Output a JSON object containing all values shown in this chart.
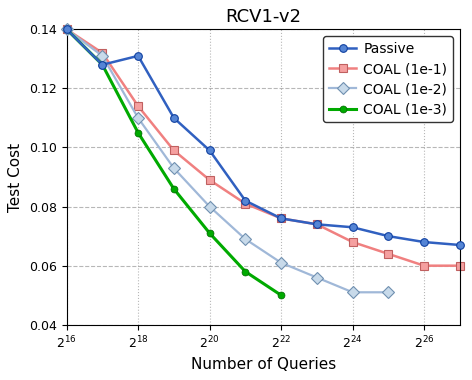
{
  "title": "RCV1-v2",
  "xlabel": "Number of Queries",
  "ylabel": "Test Cost",
  "ylim": [
    0.04,
    0.14
  ],
  "xtick_exps": [
    16,
    18,
    20,
    22,
    24,
    26
  ],
  "passive": {
    "x_exp": [
      16,
      17,
      18,
      19,
      20,
      21,
      22,
      23,
      24,
      25,
      26,
      27
    ],
    "y": [
      0.14,
      0.128,
      0.131,
      0.11,
      0.099,
      0.082,
      0.076,
      0.074,
      0.073,
      0.07,
      0.068,
      0.067
    ],
    "color": "#3060c0",
    "marker": "o",
    "markersize": 5.5,
    "linewidth": 1.8,
    "label": "Passive"
  },
  "coal_1e1": {
    "x_exp": [
      16,
      17,
      18,
      19,
      20,
      21,
      22,
      23,
      24,
      25,
      26,
      27
    ],
    "y": [
      0.14,
      0.132,
      0.114,
      0.099,
      0.089,
      0.081,
      0.076,
      0.074,
      0.068,
      0.064,
      0.06,
      0.06
    ],
    "color": "#f08080",
    "marker": "s",
    "markersize": 5.5,
    "linewidth": 1.8,
    "label": "COAL (1e-1)"
  },
  "coal_1e2": {
    "x_exp": [
      16,
      17,
      18,
      19,
      20,
      21,
      22,
      23,
      24,
      25
    ],
    "y": [
      0.14,
      0.131,
      0.11,
      0.093,
      0.08,
      0.069,
      0.061,
      0.056,
      0.051,
      0.051
    ],
    "color": "#a0b8d8",
    "marker": "D",
    "markersize": 6,
    "linewidth": 1.6,
    "label": "COAL (1e-2)"
  },
  "coal_1e3": {
    "x_exp": [
      16,
      17,
      18,
      19,
      20,
      21,
      22
    ],
    "y": [
      0.14,
      0.128,
      0.105,
      0.086,
      0.071,
      0.058,
      0.05
    ],
    "color": "#00aa00",
    "marker": "o",
    "markersize": 5,
    "linewidth": 2.2,
    "label": "COAL (1e-3)"
  },
  "grid_color": "#999999",
  "background_color": "#ffffff",
  "legend_fontsize": 10,
  "axis_fontsize": 11,
  "title_fontsize": 13
}
